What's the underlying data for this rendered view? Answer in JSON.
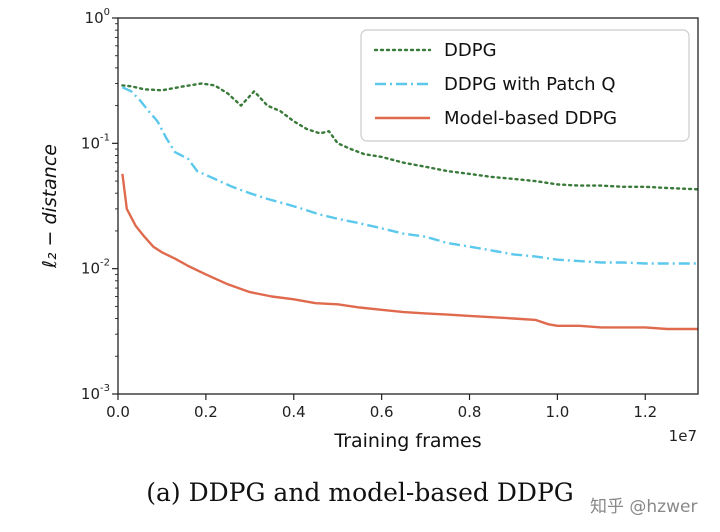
{
  "chart_data": {
    "type": "line",
    "ylabel": "ℓ₂ − distance",
    "xlabel": "Training frames",
    "x_multiplier": "1e7",
    "xlim": [
      0,
      1.32
    ],
    "ylim_log10": [
      -3,
      0
    ],
    "yscale": "log",
    "grid": false,
    "legend_position": "top-right",
    "x_ticks": [
      "0.0",
      "0.2",
      "0.4",
      "0.6",
      "0.8",
      "1.0",
      "1.2"
    ],
    "y_ticks": [
      {
        "base": "10",
        "exp": "0",
        "value": 1
      },
      {
        "base": "10",
        "exp": "-1",
        "value": 0.1
      },
      {
        "base": "10",
        "exp": "-2",
        "value": 0.01
      },
      {
        "base": "10",
        "exp": "-3",
        "value": 0.001
      }
    ],
    "series": [
      {
        "name": "DDPG",
        "color": "#3a7a3a",
        "dash": "dotted",
        "points": [
          [
            0.01,
            0.29
          ],
          [
            0.03,
            0.285
          ],
          [
            0.06,
            0.27
          ],
          [
            0.1,
            0.265
          ],
          [
            0.15,
            0.285
          ],
          [
            0.19,
            0.3
          ],
          [
            0.22,
            0.29
          ],
          [
            0.25,
            0.25
          ],
          [
            0.28,
            0.2
          ],
          [
            0.31,
            0.26
          ],
          [
            0.34,
            0.2
          ],
          [
            0.37,
            0.18
          ],
          [
            0.4,
            0.15
          ],
          [
            0.43,
            0.13
          ],
          [
            0.46,
            0.12
          ],
          [
            0.48,
            0.125
          ],
          [
            0.5,
            0.1
          ],
          [
            0.53,
            0.09
          ],
          [
            0.56,
            0.082
          ],
          [
            0.6,
            0.078
          ],
          [
            0.65,
            0.07
          ],
          [
            0.7,
            0.065
          ],
          [
            0.75,
            0.06
          ],
          [
            0.8,
            0.057
          ],
          [
            0.85,
            0.054
          ],
          [
            0.9,
            0.052
          ],
          [
            0.95,
            0.05
          ],
          [
            1.0,
            0.047
          ],
          [
            1.05,
            0.046
          ],
          [
            1.1,
            0.046
          ],
          [
            1.15,
            0.045
          ],
          [
            1.2,
            0.045
          ],
          [
            1.25,
            0.044
          ],
          [
            1.32,
            0.043
          ]
        ]
      },
      {
        "name": "DDPG with Patch Q",
        "color": "#5bc8ec",
        "dash": "dashdot",
        "points": [
          [
            0.01,
            0.28
          ],
          [
            0.03,
            0.26
          ],
          [
            0.05,
            0.22
          ],
          [
            0.07,
            0.18
          ],
          [
            0.09,
            0.15
          ],
          [
            0.11,
            0.11
          ],
          [
            0.13,
            0.085
          ],
          [
            0.16,
            0.075
          ],
          [
            0.18,
            0.06
          ],
          [
            0.22,
            0.052
          ],
          [
            0.26,
            0.045
          ],
          [
            0.3,
            0.04
          ],
          [
            0.34,
            0.036
          ],
          [
            0.38,
            0.033
          ],
          [
            0.42,
            0.03
          ],
          [
            0.46,
            0.027
          ],
          [
            0.5,
            0.025
          ],
          [
            0.55,
            0.023
          ],
          [
            0.6,
            0.021
          ],
          [
            0.65,
            0.019
          ],
          [
            0.7,
            0.018
          ],
          [
            0.75,
            0.016
          ],
          [
            0.8,
            0.015
          ],
          [
            0.85,
            0.014
          ],
          [
            0.9,
            0.013
          ],
          [
            0.95,
            0.0125
          ],
          [
            1.0,
            0.0118
          ],
          [
            1.05,
            0.0115
          ],
          [
            1.1,
            0.0112
          ],
          [
            1.15,
            0.0112
          ],
          [
            1.2,
            0.011
          ],
          [
            1.25,
            0.011
          ],
          [
            1.32,
            0.011
          ]
        ]
      },
      {
        "name": "Model-based DDPG",
        "color": "#e06a4e",
        "dash": "solid",
        "points": [
          [
            0.01,
            0.057
          ],
          [
            0.02,
            0.03
          ],
          [
            0.04,
            0.022
          ],
          [
            0.06,
            0.018
          ],
          [
            0.08,
            0.015
          ],
          [
            0.1,
            0.0135
          ],
          [
            0.13,
            0.012
          ],
          [
            0.16,
            0.0105
          ],
          [
            0.2,
            0.009
          ],
          [
            0.25,
            0.0075
          ],
          [
            0.3,
            0.0065
          ],
          [
            0.35,
            0.006
          ],
          [
            0.4,
            0.0057
          ],
          [
            0.45,
            0.0053
          ],
          [
            0.5,
            0.0052
          ],
          [
            0.55,
            0.0049
          ],
          [
            0.6,
            0.0047
          ],
          [
            0.65,
            0.0045
          ],
          [
            0.7,
            0.0044
          ],
          [
            0.75,
            0.0043
          ],
          [
            0.8,
            0.0042
          ],
          [
            0.85,
            0.0041
          ],
          [
            0.9,
            0.004
          ],
          [
            0.95,
            0.0039
          ],
          [
            0.98,
            0.0036
          ],
          [
            1.0,
            0.0035
          ],
          [
            1.05,
            0.0035
          ],
          [
            1.1,
            0.0034
          ],
          [
            1.15,
            0.0034
          ],
          [
            1.2,
            0.0034
          ],
          [
            1.25,
            0.0033
          ],
          [
            1.32,
            0.0033
          ]
        ]
      }
    ]
  },
  "caption": "(a)  DDPG and model-based DDPG",
  "watermark": "知乎 @hzwer"
}
